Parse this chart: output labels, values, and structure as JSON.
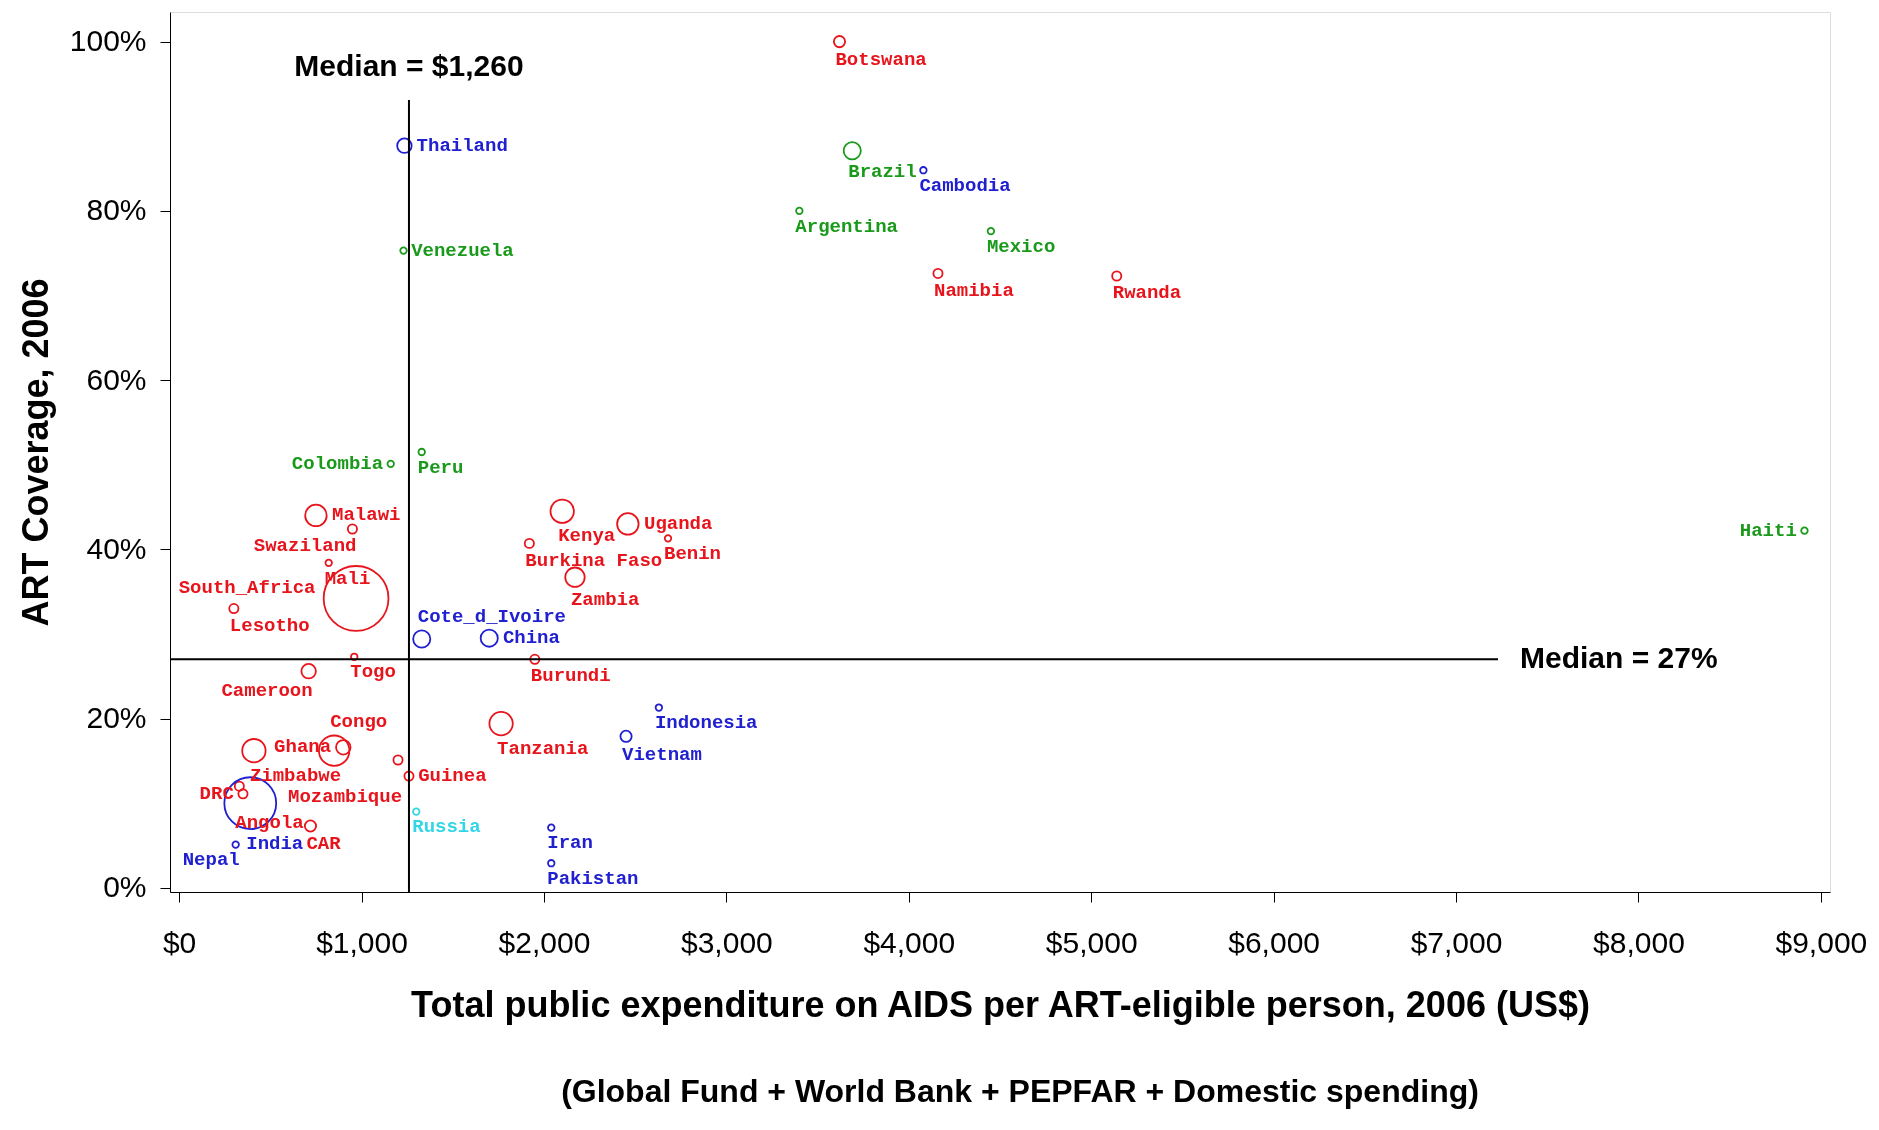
{
  "chart_data": {
    "type": "bubble",
    "xlabel": "Total public expenditure on AIDS per ART-eligible person, 2006 (US$)",
    "ylabel": "ART Coverage, 2006",
    "annotations": [
      "(Global Fund + World Bank + PEPFAR + Domestic spending)"
    ],
    "xlim": [
      -50,
      9050
    ],
    "ylim": [
      -0.5,
      103.5
    ],
    "xticks": [
      {
        "value": 0,
        "label": "$0"
      },
      {
        "value": 1000,
        "label": "$1,000"
      },
      {
        "value": 2000,
        "label": "$2,000"
      },
      {
        "value": 3000,
        "label": "$3,000"
      },
      {
        "value": 4000,
        "label": "$4,000"
      },
      {
        "value": 5000,
        "label": "$5,000"
      },
      {
        "value": 6000,
        "label": "$6,000"
      },
      {
        "value": 7000,
        "label": "$7,000"
      },
      {
        "value": 8000,
        "label": "$8,000"
      },
      {
        "value": 9000,
        "label": "$9,000"
      }
    ],
    "yticks": [
      {
        "value": 0,
        "label": "0%"
      },
      {
        "value": 20,
        "label": "20%"
      },
      {
        "value": 40,
        "label": "40%"
      },
      {
        "value": 60,
        "label": "60%"
      },
      {
        "value": 80,
        "label": "80%"
      },
      {
        "value": 100,
        "label": "100%"
      }
    ],
    "ref_lines": [
      {
        "axis": "x",
        "value": 1260,
        "label": "Median = $1,260",
        "color": "#000000"
      },
      {
        "axis": "y",
        "value": 27,
        "label": "Median = 27%",
        "color": "#000000"
      }
    ],
    "marker": "circle",
    "grid": false,
    "series": [
      {
        "color": "#e8141c",
        "x": [
          3620,
          4160,
          5140,
          2100,
          2460,
          2680,
          750,
          950,
          1920,
          820,
          970,
          2170,
          300,
          960,
          710,
          1950,
          1765,
          410,
          850,
          900,
          1200,
          1260,
          350,
          330,
          720
        ],
        "values": [
          100,
          72.6,
          72.3,
          44.5,
          43,
          41.3,
          44,
          42.4,
          40.7,
          38.4,
          34.2,
          36.7,
          33,
          27.3,
          25.6,
          27,
          19.4,
          16.2,
          16.2,
          16.6,
          15.1,
          13.2,
          11.1,
          12,
          7.3
        ],
        "sizes": [
          0.03,
          0.02,
          0.02,
          0.13,
          0.11,
          0.01,
          0.11,
          0.02,
          0.02,
          0.01,
          1,
          0.09,
          0.02,
          0.01,
          0.05,
          0.02,
          0.13,
          0.13,
          0.22,
          0.05,
          0.02,
          0.02,
          0.02,
          0.02,
          0.03
        ],
        "value_labels": [
          "Botswana",
          "Namibia",
          "Rwanda",
          "Kenya",
          "Uganda",
          "Benin",
          "Malawi",
          "Swaziland",
          "Burkina Faso",
          "Mali",
          "South_Africa",
          "Zambia",
          "Lesotho",
          "Togo",
          "Cameroon",
          "Burundi",
          "Tanzania",
          "Zimbabwe",
          "Congo",
          "Ghana",
          "Mozambique",
          "Guinea",
          "DRC",
          "Angola",
          "CAR"
        ]
      },
      {
        "color": "#1a9a1a",
        "x": [
          3690,
          3400,
          4450,
          1230,
          1330,
          1160,
          8910
        ],
        "values": [
          87.1,
          80,
          77.6,
          75.3,
          51.5,
          50.1,
          42.2
        ],
        "sizes": [
          0.07,
          0.01,
          0.01,
          0.01,
          0.01,
          0.01,
          0.01
        ],
        "value_labels": [
          "Brazil",
          "Argentina",
          "Mexico",
          "Venezuela",
          "Peru",
          "Colombia",
          "Haiti"
        ]
      },
      {
        "color": "#2020d0",
        "x": [
          1235,
          4080,
          1700,
          2630,
          2450,
          2040,
          2040,
          390,
          310,
          1330
        ],
        "values": [
          87.7,
          84.8,
          29.5,
          21.3,
          17.9,
          7.1,
          2.9,
          10,
          5.1,
          29.4
        ],
        "sizes": [
          0.05,
          0.01,
          0.07,
          0.01,
          0.03,
          0.01,
          0.01,
          0.64,
          0.01,
          0.07
        ],
        "value_labels": [
          "Thailand",
          "Cambodia",
          "China",
          "Indonesia",
          "Vietnam",
          "Iran",
          "Pakistan",
          "India",
          "Nepal",
          "Cote_d_Ivoire"
        ]
      },
      {
        "color": "#33d6e6",
        "x": [
          1300
        ],
        "values": [
          9
        ],
        "sizes": [
          0.01
        ],
        "value_labels": [
          "Russia"
        ]
      }
    ]
  }
}
